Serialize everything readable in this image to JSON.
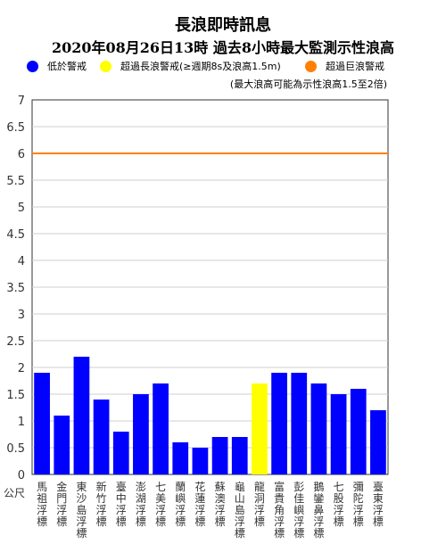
{
  "title": "長浪即時訊息",
  "subtitle": "2020年08月26日13時 過去8小時最大監測示性浪高",
  "legend": [
    {
      "label": "低於警戒",
      "color": "#0000ff"
    },
    {
      "label": "超過長浪警戒(≥週期8s及浪高1.5m)",
      "color": "#ffff00"
    },
    {
      "label": "超過巨浪警戒",
      "color": "#ff8000"
    }
  ],
  "note": "(最大浪高可能為示性浪高1.5至2倍)",
  "chart_data": {
    "type": "bar",
    "categories": [
      "馬祖浮標",
      "金門浮標",
      "東沙島浮標",
      "新竹浮標",
      "臺中浮標",
      "澎湖浮標",
      "七美浮標",
      "蘭嶼浮標",
      "花蓮浮標",
      "蘇澳浮標",
      "龜山島浮標",
      "龍洞浮標",
      "富貴角浮標",
      "彭佳嶼浮標",
      "鵝鑾鼻浮標",
      "七股浮標",
      "彌陀浮標",
      "臺東浮標"
    ],
    "values": [
      1.9,
      1.1,
      2.2,
      1.4,
      0.8,
      1.5,
      1.7,
      0.6,
      0.5,
      0.7,
      0.7,
      1.7,
      1.9,
      1.9,
      1.7,
      1.5,
      1.6,
      1.2
    ],
    "bar_colors": [
      "#0000ff",
      "#0000ff",
      "#0000ff",
      "#0000ff",
      "#0000ff",
      "#0000ff",
      "#0000ff",
      "#0000ff",
      "#0000ff",
      "#0000ff",
      "#0000ff",
      "#ffff00",
      "#0000ff",
      "#0000ff",
      "#0000ff",
      "#0000ff",
      "#0000ff",
      "#0000ff"
    ],
    "ylabel": "公尺",
    "ylim": [
      0,
      7
    ],
    "yticks": [
      0,
      0.5,
      1,
      1.5,
      2,
      2.5,
      3,
      3.5,
      4,
      4.5,
      5,
      5.5,
      6,
      6.5,
      7
    ],
    "threshold": {
      "value": 6,
      "color": "#ff8000"
    },
    "grid": true
  }
}
